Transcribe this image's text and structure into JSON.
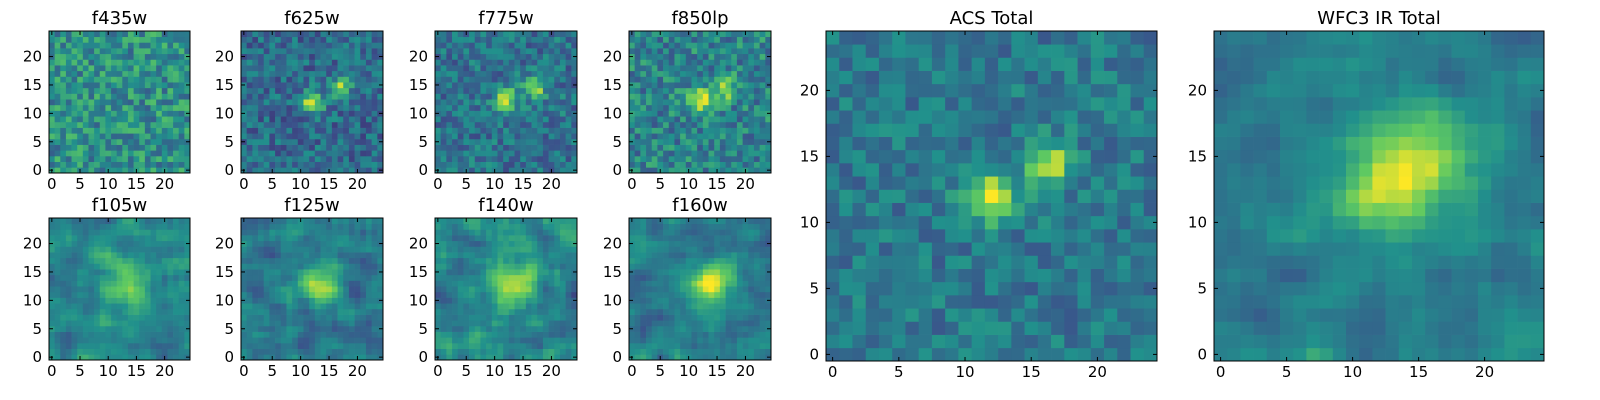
{
  "figure": {
    "colormap": "viridis",
    "colors": [
      "#440154",
      "#3b528b",
      "#21918c",
      "#5ec962",
      "#fde725"
    ]
  },
  "chart_data": [
    {
      "type": "heatmap",
      "title": "f435w",
      "xlim": [
        0,
        24
      ],
      "ylim": [
        0,
        24
      ],
      "xticks": [
        0,
        5,
        10,
        15,
        20
      ],
      "yticks": [
        0,
        5,
        10,
        15,
        20
      ],
      "grid": false,
      "sources": [],
      "noise": 0.4,
      "base": 0.5,
      "smooth": false
    },
    {
      "type": "heatmap",
      "title": "f625w",
      "xlim": [
        0,
        24
      ],
      "ylim": [
        0,
        24
      ],
      "xticks": [
        0,
        5,
        10,
        15,
        20
      ],
      "yticks": [
        0,
        5,
        10,
        15,
        20
      ],
      "grid": false,
      "sources": [
        {
          "x": 12,
          "y": 12,
          "amp": 0.6,
          "sigma": 1.3
        },
        {
          "x": 17,
          "y": 14.5,
          "amp": 0.5,
          "sigma": 1.2
        }
      ],
      "noise": 0.32,
      "base": 0.35,
      "smooth": false
    },
    {
      "type": "heatmap",
      "title": "f775w",
      "xlim": [
        0,
        24
      ],
      "ylim": [
        0,
        24
      ],
      "xticks": [
        0,
        5,
        10,
        15,
        20
      ],
      "yticks": [
        0,
        5,
        10,
        15,
        20
      ],
      "grid": false,
      "sources": [
        {
          "x": 12,
          "y": 12.5,
          "amp": 0.6,
          "sigma": 1.3
        },
        {
          "x": 17,
          "y": 14.5,
          "amp": 0.55,
          "sigma": 1.2
        }
      ],
      "noise": 0.32,
      "base": 0.38,
      "smooth": false
    },
    {
      "type": "heatmap",
      "title": "f850lp",
      "xlim": [
        0,
        24
      ],
      "ylim": [
        0,
        24
      ],
      "xticks": [
        0,
        5,
        10,
        15,
        20
      ],
      "yticks": [
        0,
        5,
        10,
        15,
        20
      ],
      "grid": false,
      "sources": [
        {
          "x": 12,
          "y": 12.5,
          "amp": 0.45,
          "sigma": 1.5
        },
        {
          "x": 16.5,
          "y": 14.5,
          "amp": 0.45,
          "sigma": 1.3
        }
      ],
      "noise": 0.38,
      "base": 0.45,
      "smooth": false
    },
    {
      "type": "heatmap",
      "title": "f105w",
      "xlim": [
        0,
        24
      ],
      "ylim": [
        0,
        24
      ],
      "xticks": [
        0,
        5,
        10,
        15,
        20
      ],
      "yticks": [
        0,
        5,
        10,
        15,
        20
      ],
      "grid": false,
      "sources": [
        {
          "x": 13,
          "y": 13,
          "amp": 0.3,
          "sigma": 3.5
        }
      ],
      "noise": 0.28,
      "base": 0.45,
      "smooth": true
    },
    {
      "type": "heatmap",
      "title": "f125w",
      "xlim": [
        0,
        24
      ],
      "ylim": [
        0,
        24
      ],
      "xticks": [
        0,
        5,
        10,
        15,
        20
      ],
      "yticks": [
        0,
        5,
        10,
        15,
        20
      ],
      "grid": false,
      "sources": [
        {
          "x": 13,
          "y": 12.5,
          "amp": 0.42,
          "sigma": 2.5
        }
      ],
      "noise": 0.3,
      "base": 0.4,
      "smooth": true
    },
    {
      "type": "heatmap",
      "title": "f140w",
      "xlim": [
        0,
        24
      ],
      "ylim": [
        0,
        24
      ],
      "xticks": [
        0,
        5,
        10,
        15,
        20
      ],
      "yticks": [
        0,
        5,
        10,
        15,
        20
      ],
      "grid": false,
      "sources": [
        {
          "x": 14,
          "y": 12.5,
          "amp": 0.35,
          "sigma": 3
        }
      ],
      "noise": 0.32,
      "base": 0.45,
      "smooth": true
    },
    {
      "type": "heatmap",
      "title": "f160w",
      "xlim": [
        0,
        24
      ],
      "ylim": [
        0,
        24
      ],
      "xticks": [
        0,
        5,
        10,
        15,
        20
      ],
      "yticks": [
        0,
        5,
        10,
        15,
        20
      ],
      "grid": false,
      "sources": [
        {
          "x": 13,
          "y": 12.5,
          "amp": 0.45,
          "sigma": 2.5
        },
        {
          "x": 16,
          "y": 14.5,
          "amp": 0.3,
          "sigma": 2.5
        }
      ],
      "noise": 0.25,
      "base": 0.4,
      "smooth": true
    },
    {
      "type": "heatmap",
      "title": "ACS Total",
      "xlim": [
        0,
        24
      ],
      "ylim": [
        0,
        24
      ],
      "xticks": [
        0,
        5,
        10,
        15,
        20
      ],
      "yticks": [
        0,
        5,
        10,
        15,
        20
      ],
      "grid": false,
      "sources": [
        {
          "x": 12,
          "y": 12,
          "amp": 0.55,
          "sigma": 1.4
        },
        {
          "x": 16.5,
          "y": 14.5,
          "amp": 0.5,
          "sigma": 1.2
        }
      ],
      "noise": 0.26,
      "base": 0.4,
      "smooth": false
    },
    {
      "type": "heatmap",
      "title": "WFC3 IR Total",
      "xlim": [
        0,
        24
      ],
      "ylim": [
        0,
        24
      ],
      "xticks": [
        0,
        5,
        10,
        15,
        20
      ],
      "yticks": [
        0,
        5,
        10,
        15,
        20
      ],
      "grid": false,
      "sources": [
        {
          "x": 12,
          "y": 12.5,
          "amp": 0.38,
          "sigma": 2.5
        },
        {
          "x": 15.5,
          "y": 15,
          "amp": 0.35,
          "sigma": 2.8
        }
      ],
      "noise": 0.22,
      "base": 0.42,
      "smooth": true
    }
  ]
}
